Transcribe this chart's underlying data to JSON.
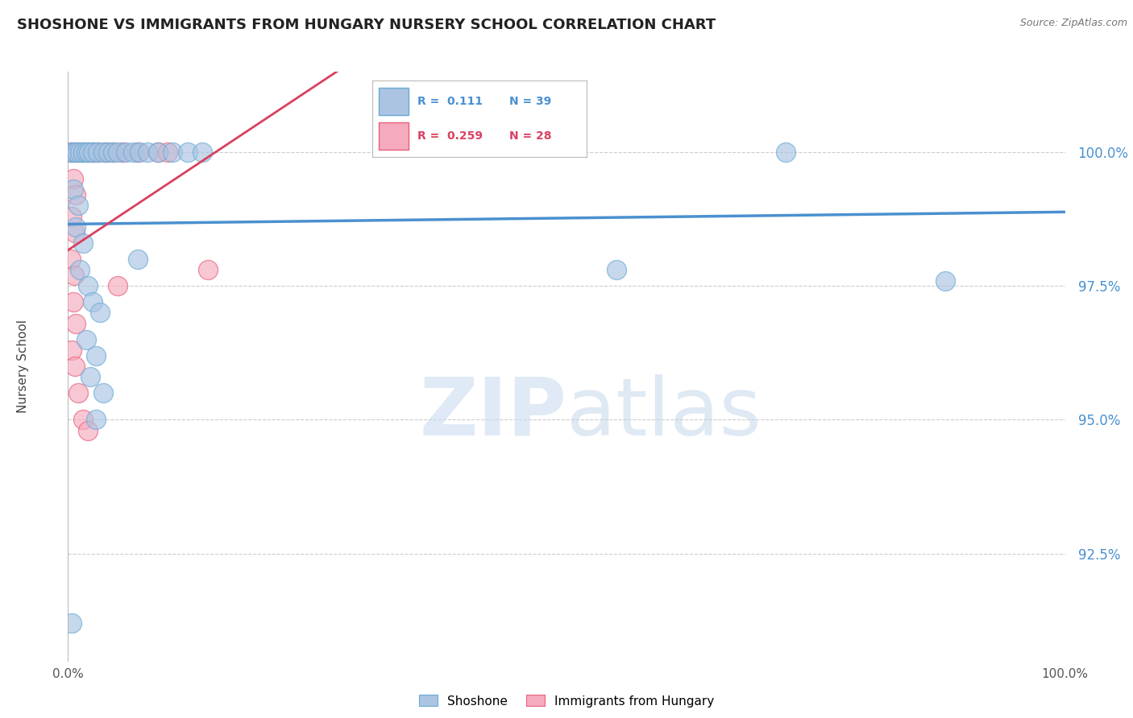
{
  "title": "SHOSHONE VS IMMIGRANTS FROM HUNGARY NURSERY SCHOOL CORRELATION CHART",
  "source": "Source: ZipAtlas.com",
  "ylabel": "Nursery School",
  "legend_shoshone": "Shoshone",
  "legend_hungary": "Immigrants from Hungary",
  "shoshone_color": "#aac4e2",
  "hungary_color": "#f5aabe",
  "shoshone_edge_color": "#6aaad4",
  "hungary_edge_color": "#e8607a",
  "shoshone_line_color": "#4a90d0",
  "hungary_line_color": "#d94060",
  "R_shoshone": 0.111,
  "N_shoshone": 39,
  "R_hungary": 0.259,
  "N_hungary": 28,
  "xlim": [
    0.0,
    100.0
  ],
  "ylim": [
    90.5,
    101.5
  ],
  "yticks": [
    92.5,
    95.0,
    97.5,
    100.0
  ],
  "watermark_zip": "ZIP",
  "watermark_atlas": "atlas",
  "shoshone_points": [
    [
      0.3,
      100.0
    ],
    [
      0.6,
      100.0
    ],
    [
      0.9,
      100.0
    ],
    [
      1.2,
      100.0
    ],
    [
      1.5,
      100.0
    ],
    [
      1.8,
      100.0
    ],
    [
      2.1,
      100.0
    ],
    [
      2.5,
      100.0
    ],
    [
      3.0,
      100.0
    ],
    [
      3.5,
      100.0
    ],
    [
      4.0,
      100.0
    ],
    [
      4.5,
      100.0
    ],
    [
      5.0,
      100.0
    ],
    [
      5.8,
      100.0
    ],
    [
      6.5,
      100.0
    ],
    [
      7.2,
      100.0
    ],
    [
      8.0,
      100.0
    ],
    [
      9.0,
      100.0
    ],
    [
      10.5,
      100.0
    ],
    [
      12.0,
      100.0
    ],
    [
      13.5,
      100.0
    ],
    [
      0.5,
      99.3
    ],
    [
      1.0,
      99.0
    ],
    [
      0.8,
      98.6
    ],
    [
      1.5,
      98.3
    ],
    [
      1.2,
      97.8
    ],
    [
      2.0,
      97.5
    ],
    [
      2.5,
      97.2
    ],
    [
      3.2,
      97.0
    ],
    [
      1.8,
      96.5
    ],
    [
      2.8,
      96.2
    ],
    [
      2.2,
      95.8
    ],
    [
      3.5,
      95.5
    ],
    [
      2.8,
      95.0
    ],
    [
      7.0,
      98.0
    ],
    [
      55.0,
      97.8
    ],
    [
      72.0,
      100.0
    ],
    [
      88.0,
      97.6
    ],
    [
      0.4,
      91.2
    ]
  ],
  "hungary_points": [
    [
      0.3,
      100.0
    ],
    [
      0.6,
      100.0
    ],
    [
      1.0,
      100.0
    ],
    [
      1.5,
      100.0
    ],
    [
      2.0,
      100.0
    ],
    [
      2.5,
      100.0
    ],
    [
      3.0,
      100.0
    ],
    [
      3.8,
      100.0
    ],
    [
      4.5,
      100.0
    ],
    [
      5.5,
      100.0
    ],
    [
      7.0,
      100.0
    ],
    [
      9.0,
      100.0
    ],
    [
      0.5,
      99.5
    ],
    [
      0.8,
      99.2
    ],
    [
      0.4,
      98.8
    ],
    [
      0.7,
      98.5
    ],
    [
      0.3,
      98.0
    ],
    [
      0.6,
      97.7
    ],
    [
      0.5,
      97.2
    ],
    [
      0.8,
      96.8
    ],
    [
      0.4,
      96.3
    ],
    [
      0.7,
      96.0
    ],
    [
      1.0,
      95.5
    ],
    [
      1.5,
      95.0
    ],
    [
      2.0,
      94.8
    ],
    [
      5.0,
      97.5
    ],
    [
      10.0,
      100.0
    ],
    [
      14.0,
      97.8
    ]
  ]
}
